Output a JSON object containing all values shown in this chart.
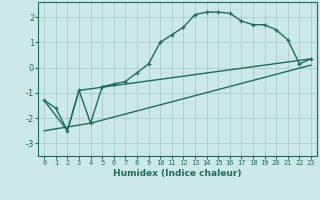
{
  "xlabel": "Humidex (Indice chaleur)",
  "background_color": "#cce8e8",
  "grid_color": "#b0d0d0",
  "line_color": "#1a6e5e",
  "xlim": [
    -0.5,
    23.5
  ],
  "ylim": [
    -3.5,
    2.6
  ],
  "yticks": [
    -3,
    -2,
    -1,
    0,
    1,
    2
  ],
  "xticks": [
    0,
    1,
    2,
    3,
    4,
    5,
    6,
    7,
    8,
    9,
    10,
    11,
    12,
    13,
    14,
    15,
    16,
    17,
    18,
    19,
    20,
    21,
    22,
    23
  ],
  "line1_x": [
    0,
    1,
    2,
    3,
    4,
    5,
    6,
    7,
    8,
    9,
    10,
    11,
    12,
    13,
    14,
    15,
    16,
    17,
    18,
    19,
    20,
    21,
    22,
    23
  ],
  "line1_y": [
    -1.3,
    -1.6,
    -2.5,
    -0.9,
    -2.2,
    -0.75,
    -0.65,
    -0.55,
    -0.2,
    0.15,
    1.0,
    1.3,
    1.6,
    2.1,
    2.2,
    2.2,
    2.15,
    1.85,
    1.7,
    1.7,
    1.5,
    1.1,
    0.15,
    0.35
  ],
  "line2_x": [
    0,
    2,
    3,
    23
  ],
  "line2_y": [
    -1.3,
    -2.5,
    -0.9,
    0.35
  ],
  "line3_x": [
    0,
    4,
    23
  ],
  "line3_y": [
    -2.5,
    -2.2,
    0.1
  ]
}
